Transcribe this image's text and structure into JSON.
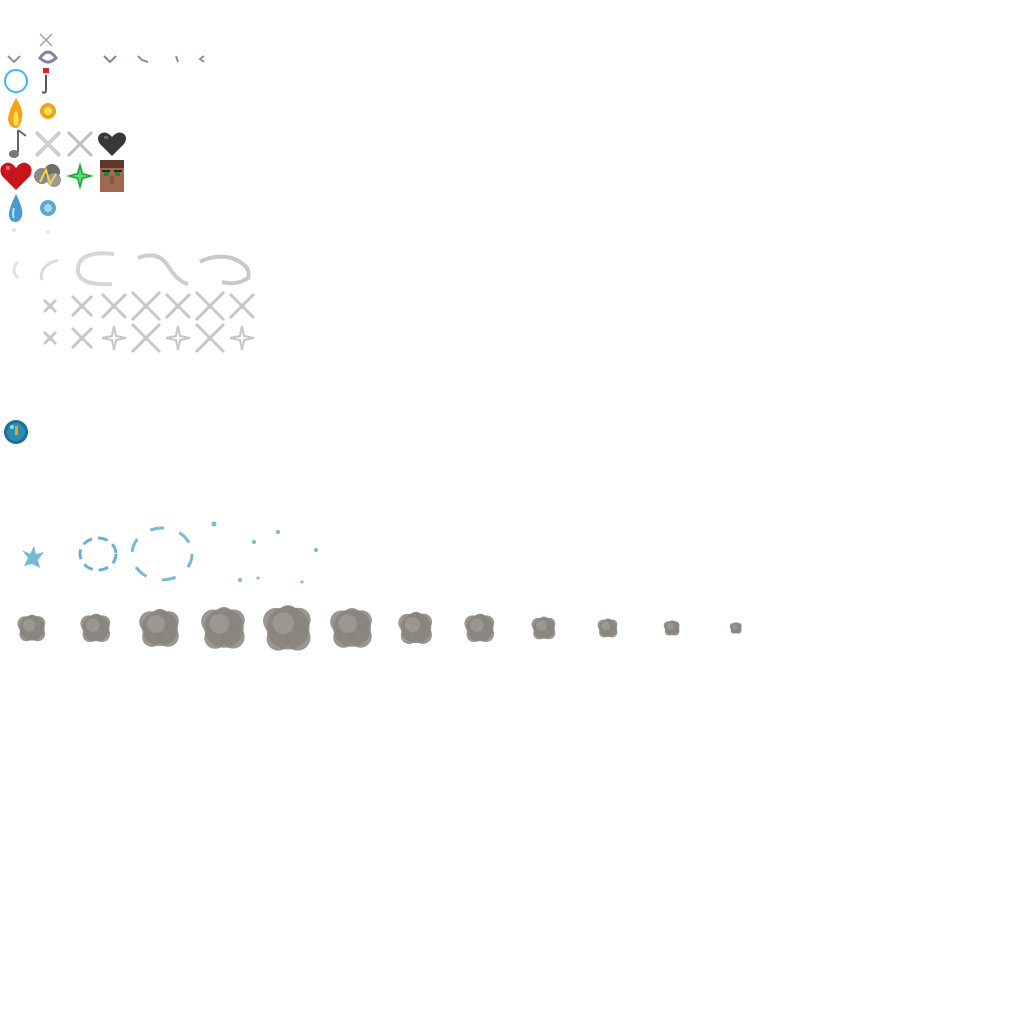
{
  "sheet": {
    "kind": "particle texture atlas",
    "background": "#ffffff"
  },
  "colors": {
    "water_blue": "#7ab8d8",
    "ring_blue": "#3fb8e8",
    "flame_orange": "#f5a21b",
    "flame_yellow": "#ffe35a",
    "heart_red": "#c8141c",
    "heart_dark": "#3a3536",
    "emerald_green": "#21a83a",
    "villager_skin": "#a06a52",
    "smoke_gray": "#8a847e",
    "sparkle_gray": "#c7c7c7",
    "bubble_teal": "#2a8db0"
  },
  "rows": [
    {
      "name": "row-generic-arrows",
      "icons": [
        "small-arrow-icon",
        "splash-drop-icon",
        "small-arrow-icon",
        "small-arrow-icon",
        "small-arrow-icon",
        "small-arrow-icon"
      ]
    },
    {
      "name": "row-bubble-hook",
      "icons": [
        "bubble-ring-icon",
        "fishing-hook-icon"
      ]
    },
    {
      "name": "row-flame-lava",
      "icons": [
        "flame-icon",
        "lava-spark-icon"
      ]
    },
    {
      "name": "row-note-crit-heart",
      "icons": [
        "music-note-icon",
        "crit-star-icon",
        "crit-star-icon",
        "dark-heart-icon"
      ]
    },
    {
      "name": "row-heart-angry-emerald-villager",
      "icons": [
        "red-heart-icon",
        "angry-cloud-icon",
        "emerald-sparkle-icon",
        "angry-villager-icon"
      ]
    },
    {
      "name": "row-drip",
      "icons": [
        "water-drip-icon",
        "water-droplet-icon"
      ]
    },
    {
      "name": "row-sweep",
      "icons": [
        "sweep-arc-icon",
        "sweep-arc-icon",
        "sweep-arc-icon",
        "sweep-arc-icon",
        "sweep-arc-icon",
        "sweep-arc-icon",
        "sweep-arc-icon",
        "sweep-arc-icon"
      ]
    },
    {
      "name": "row-sparkle-a",
      "icons": [
        "sparkle-icon",
        "sparkle-icon",
        "sparkle-icon",
        "sparkle-icon",
        "sparkle-icon",
        "sparkle-icon",
        "sparkle-icon"
      ]
    },
    {
      "name": "row-sparkle-b",
      "icons": [
        "sparkle-icon",
        "sparkle-icon",
        "sparkle-icon",
        "sparkle-icon",
        "sparkle-icon",
        "sparkle-icon",
        "sparkle-icon"
      ]
    },
    {
      "name": "row-orb",
      "icons": [
        "nautilus-orb-icon"
      ]
    },
    {
      "name": "row-splash-ring",
      "icons": [
        "splash-burst-icon",
        "splash-ring-icon",
        "splash-ring-icon",
        "splash-dots-icon",
        "splash-dots-icon"
      ]
    },
    {
      "name": "row-smoke",
      "icons": [
        "smoke-puff-icon",
        "smoke-puff-icon",
        "smoke-puff-icon",
        "smoke-puff-icon",
        "smoke-puff-icon",
        "smoke-puff-icon",
        "smoke-puff-icon",
        "smoke-puff-icon",
        "smoke-puff-icon",
        "smoke-puff-icon",
        "smoke-puff-icon",
        "smoke-puff-icon"
      ]
    }
  ]
}
